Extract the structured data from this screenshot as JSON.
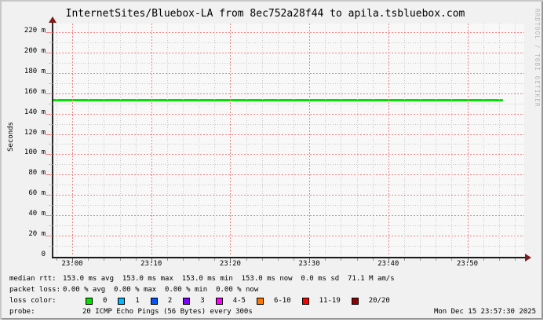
{
  "title": "InternetSites/Bluebox-LA from 8ec752a28f44 to apila.tsbluebox.com",
  "watermark": "RRDTOOL / TOBI OETIKER",
  "chart_data": {
    "type": "line",
    "title": "InternetSites/Bluebox-LA from 8ec752a28f44 to apila.tsbluebox.com",
    "ylabel": "Seconds",
    "xlabel": "",
    "grid": true,
    "legend_position": "below",
    "x_tick_labels": [
      "23:00",
      "23:10",
      "23:20",
      "23:30",
      "23:40",
      "23:50"
    ],
    "y_ticks": [
      {
        "value_ms": 220,
        "label": "220 m"
      },
      {
        "value_ms": 200,
        "label": "200 m"
      },
      {
        "value_ms": 180,
        "label": "180 m"
      },
      {
        "value_ms": 160,
        "label": "160 m"
      },
      {
        "value_ms": 140,
        "label": "140 m"
      },
      {
        "value_ms": 120,
        "label": "120 m"
      },
      {
        "value_ms": 100,
        "label": "100 m"
      },
      {
        "value_ms": 80,
        "label": "80 m"
      },
      {
        "value_ms": 60,
        "label": "60 m"
      },
      {
        "value_ms": 40,
        "label": "40 m"
      },
      {
        "value_ms": 20,
        "label": "20 m"
      },
      {
        "value_ms": 0,
        "label": "0"
      }
    ],
    "y_minor_step_ms": 10,
    "ylim_ms": [
      0,
      228
    ],
    "x_minor_step_min": 2,
    "x_major_step_min": 10,
    "time_window": {
      "start": "22:57:30",
      "end": "23:57:30"
    },
    "series": [
      {
        "name": "median rtt",
        "color": "#00e200",
        "shape": "constant-line",
        "value_ms": 153.0,
        "data_end_approx": "23:55"
      }
    ]
  },
  "legend": {
    "median_rtt": {
      "label": "median rtt:",
      "stats": "153.0 ms avg  153.0 ms max  153.0 ms min  153.0 ms now  0.0 ms sd  71.1 M am/s"
    },
    "packet_loss": {
      "label": "packet loss:",
      "stats": "0.00 % avg  0.00 % max  0.00 % min  0.00 % now"
    },
    "loss_color": {
      "label": "loss color:",
      "items": [
        {
          "label": "0",
          "color": "#00e200"
        },
        {
          "label": "1",
          "color": "#00b8ff"
        },
        {
          "label": "2",
          "color": "#0355ff"
        },
        {
          "label": "3",
          "color": "#7e00ff"
        },
        {
          "label": "4-5",
          "color": "#f800ff"
        },
        {
          "label": "6-10",
          "color": "#ff7300"
        },
        {
          "label": "11-19",
          "color": "#ff0000"
        },
        {
          "label": "20/20",
          "color": "#900000"
        }
      ]
    },
    "probe": {
      "label": "probe:",
      "value": "20 ICMP Echo Pings (56 Bytes) every 300s",
      "timestamp": "Mon Dec 15 23:57:30 2025"
    }
  },
  "colors": {
    "median_line": "#00e200",
    "grid_major": "#f28181",
    "grid_minor": "#c8c8c8",
    "axis": "#1a1a1a",
    "arrow": "#7d1d1d",
    "canvas": "#f8f8f8",
    "background": "#f1f1f1",
    "border_light": "#c8c8c8",
    "border_dark": "#969696",
    "watermark": "#b4b4b4"
  }
}
